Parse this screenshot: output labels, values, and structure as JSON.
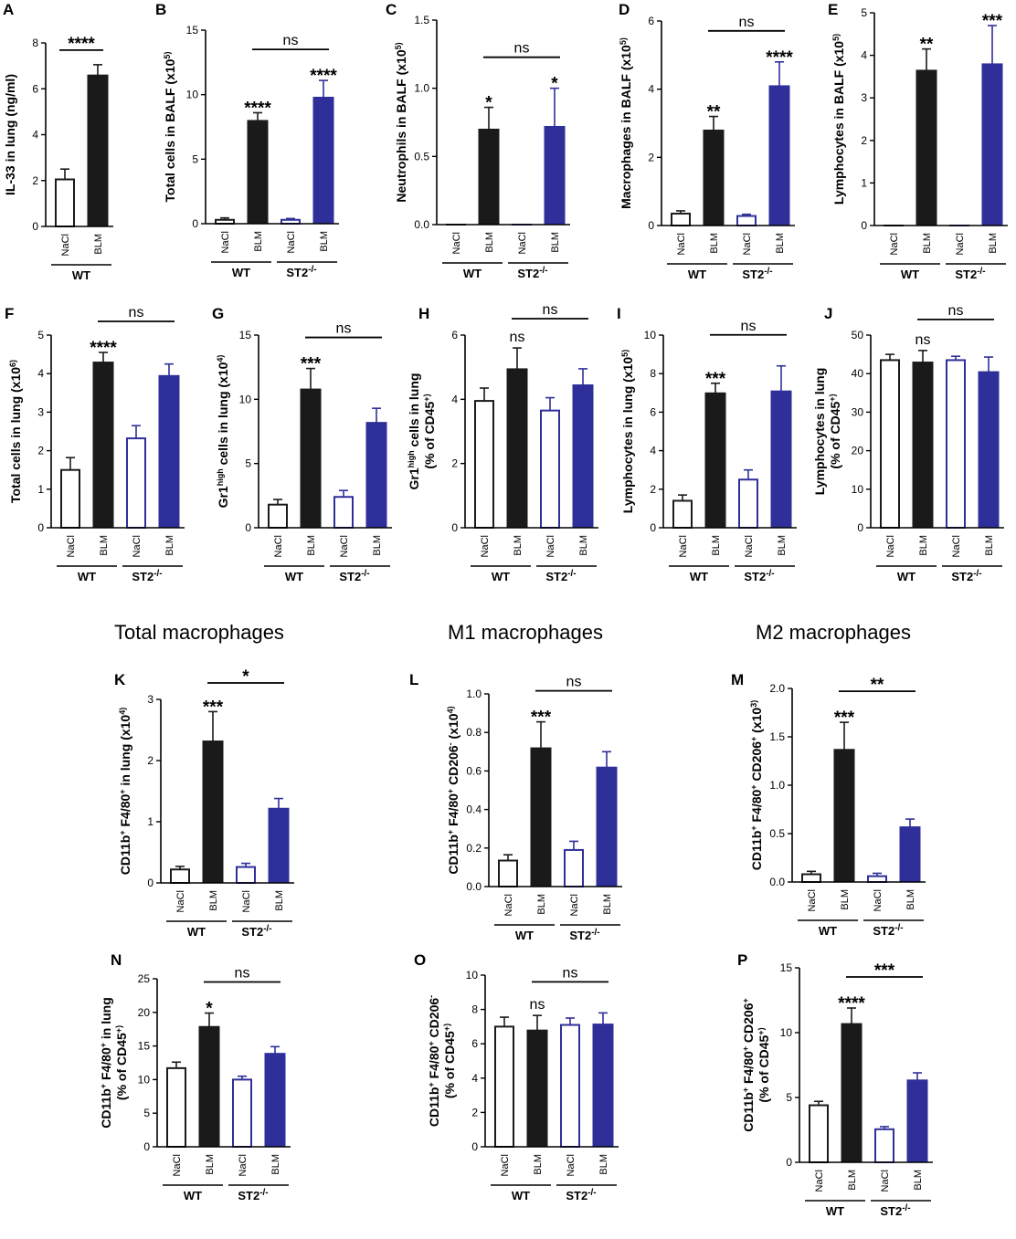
{
  "colors": {
    "wt_fill": "#1a1a1a",
    "st2_fill": "#2f2f9a",
    "st2_stroke": "#2f2f9a",
    "axis": "#000000",
    "white": "#ffffff"
  },
  "section_titles": [
    "Total macrophages",
    "M1 macrophages",
    "M2 macrophages"
  ],
  "categories": [
    "NaCl",
    "BLM",
    "NaCl",
    "BLM"
  ],
  "groups": {
    "wt": "WT",
    "st2": "ST2"
  },
  "chart_data": [
    {
      "id": "A",
      "type": "bar",
      "ylabel": "IL-33 in lung (ng/ml)",
      "ylim": [
        0,
        8
      ],
      "yticks": [
        0,
        2,
        4,
        6,
        8
      ],
      "ytick_labels": [
        "0",
        "2",
        "4",
        "6",
        "8"
      ],
      "categories": [
        "NaCl",
        "BLM"
      ],
      "groups": [
        "WT"
      ],
      "values": [
        2.05,
        6.6
      ],
      "errors": [
        0.45,
        0.45
      ],
      "styles": [
        "wt-open",
        "wt-filled"
      ],
      "stars": [
        "",
        ""
      ],
      "brackets": [
        {
          "from": 0,
          "to": 1,
          "label": "****"
        }
      ]
    },
    {
      "id": "B",
      "type": "bar",
      "ylabel": "Total cells in BALF (x10^5)",
      "ylim": [
        0,
        15
      ],
      "yticks": [
        0,
        5,
        10,
        15
      ],
      "ytick_labels": [
        "0",
        "5",
        "10",
        "15"
      ],
      "categories": [
        "NaCl",
        "BLM",
        "NaCl",
        "BLM"
      ],
      "groups": [
        "WT",
        "ST2"
      ],
      "values": [
        0.3,
        8.0,
        0.3,
        9.8
      ],
      "errors": [
        0.15,
        0.6,
        0.1,
        1.3
      ],
      "styles": [
        "wt-open",
        "wt-filled",
        "st2-open",
        "st2-filled"
      ],
      "stars": [
        "",
        "****",
        "",
        "****"
      ],
      "brackets": [
        {
          "from": 1,
          "to": 3,
          "label": "ns"
        }
      ]
    },
    {
      "id": "C",
      "type": "bar",
      "ylabel": "Neutrophils in BALF (x10^5)",
      "ylim": [
        0,
        1.5
      ],
      "yticks": [
        0,
        0.5,
        1.0,
        1.5
      ],
      "ytick_labels": [
        "0.0",
        "0.5",
        "1.0",
        "1.5"
      ],
      "categories": [
        "NaCl",
        "BLM",
        "NaCl",
        "BLM"
      ],
      "groups": [
        "WT",
        "ST2"
      ],
      "values": [
        0,
        0.7,
        0,
        0.72
      ],
      "errors": [
        0,
        0.16,
        0,
        0.28
      ],
      "styles": [
        "wt-open",
        "wt-filled",
        "st2-open",
        "st2-filled"
      ],
      "stars": [
        "",
        "*",
        "",
        "*"
      ],
      "brackets": [
        {
          "from": 1,
          "to": 3,
          "label": "ns"
        }
      ]
    },
    {
      "id": "D",
      "type": "bar",
      "ylabel": "Macrophages in BALF (x10^5)",
      "ylim": [
        0,
        6
      ],
      "yticks": [
        0,
        2,
        4,
        6
      ],
      "ytick_labels": [
        "0",
        "2",
        "4",
        "6"
      ],
      "categories": [
        "NaCl",
        "BLM",
        "NaCl",
        "BLM"
      ],
      "groups": [
        "WT",
        "ST2"
      ],
      "values": [
        0.35,
        2.8,
        0.28,
        4.1
      ],
      "errors": [
        0.08,
        0.4,
        0.05,
        0.7
      ],
      "styles": [
        "wt-open",
        "wt-filled",
        "st2-open",
        "st2-filled"
      ],
      "stars": [
        "",
        "**",
        "",
        "****"
      ],
      "brackets": [
        {
          "from": 1,
          "to": 3,
          "label": "ns"
        }
      ]
    },
    {
      "id": "E",
      "type": "bar",
      "ylabel": "Lymphocytes in BALF (x10^5)",
      "ylim": [
        0,
        5
      ],
      "yticks": [
        0,
        1,
        2,
        3,
        4,
        5
      ],
      "ytick_labels": [
        "0",
        "1",
        "2",
        "3",
        "4",
        "5"
      ],
      "categories": [
        "NaCl",
        "BLM",
        "NaCl",
        "BLM"
      ],
      "groups": [
        "WT",
        "ST2"
      ],
      "values": [
        0,
        3.65,
        0,
        3.8
      ],
      "errors": [
        0,
        0.5,
        0,
        0.9
      ],
      "styles": [
        "wt-open",
        "wt-filled",
        "st2-open",
        "st2-filled"
      ],
      "stars": [
        "",
        "**",
        "",
        "***"
      ],
      "brackets": [
        {
          "from": 1,
          "to": 3,
          "label": "ns"
        }
      ]
    },
    {
      "id": "F",
      "type": "bar",
      "ylabel": "Total cells in lung (x10^6)",
      "ylim": [
        0,
        5
      ],
      "yticks": [
        0,
        1,
        2,
        3,
        4,
        5
      ],
      "ytick_labels": [
        "0",
        "1",
        "2",
        "3",
        "4",
        "5"
      ],
      "categories": [
        "NaCl",
        "BLM",
        "NaCl",
        "BLM"
      ],
      "groups": [
        "WT",
        "ST2"
      ],
      "values": [
        1.5,
        4.3,
        2.32,
        3.95
      ],
      "errors": [
        0.32,
        0.25,
        0.33,
        0.3
      ],
      "styles": [
        "wt-open",
        "wt-filled",
        "st2-open",
        "st2-filled"
      ],
      "stars": [
        "",
        "****",
        "",
        ""
      ],
      "brackets": [
        {
          "from": 1,
          "to": 3,
          "label": "ns"
        }
      ]
    },
    {
      "id": "G",
      "type": "bar",
      "ylabel": "Gr1^high cells in lung (x10^4)",
      "ylim": [
        0,
        15
      ],
      "yticks": [
        0,
        5,
        10,
        15
      ],
      "ytick_labels": [
        "0",
        "5",
        "10",
        "15"
      ],
      "categories": [
        "NaCl",
        "BLM",
        "NaCl",
        "BLM"
      ],
      "groups": [
        "WT",
        "ST2"
      ],
      "values": [
        1.8,
        10.8,
        2.4,
        8.2
      ],
      "errors": [
        0.4,
        1.6,
        0.5,
        1.1
      ],
      "styles": [
        "wt-open",
        "wt-filled",
        "st2-open",
        "st2-filled"
      ],
      "stars": [
        "",
        "***",
        "",
        ""
      ],
      "brackets": [
        {
          "from": 1,
          "to": 3,
          "label": "ns"
        }
      ]
    },
    {
      "id": "H",
      "type": "bar",
      "ylabel": "Gr1^high cells in lung|(% of CD45^+)",
      "ylim": [
        0,
        6
      ],
      "yticks": [
        0,
        2,
        4,
        6
      ],
      "ytick_labels": [
        "0",
        "2",
        "4",
        "6"
      ],
      "categories": [
        "NaCl",
        "BLM",
        "NaCl",
        "BLM"
      ],
      "groups": [
        "WT",
        "ST2"
      ],
      "values": [
        3.95,
        4.95,
        3.65,
        4.45
      ],
      "errors": [
        0.4,
        0.65,
        0.4,
        0.5
      ],
      "styles": [
        "wt-open",
        "wt-filled",
        "st2-open",
        "st2-filled"
      ],
      "stars": [
        "",
        "ns",
        "",
        ""
      ],
      "brackets": [
        {
          "from": 1,
          "to": 3,
          "label": "ns"
        }
      ]
    },
    {
      "id": "I",
      "type": "bar",
      "ylabel": "Lymphocytes in lung (x10^5)",
      "ylim": [
        0,
        10
      ],
      "yticks": [
        0,
        2,
        4,
        6,
        8,
        10
      ],
      "ytick_labels": [
        "0",
        "2",
        "4",
        "6",
        "8",
        "10"
      ],
      "categories": [
        "NaCl",
        "BLM",
        "NaCl",
        "BLM"
      ],
      "groups": [
        "WT",
        "ST2"
      ],
      "values": [
        1.4,
        7.0,
        2.5,
        7.1
      ],
      "errors": [
        0.3,
        0.5,
        0.5,
        1.3
      ],
      "styles": [
        "wt-open",
        "wt-filled",
        "st2-open",
        "st2-filled"
      ],
      "stars": [
        "",
        "***",
        "",
        ""
      ],
      "brackets": [
        {
          "from": 1,
          "to": 3,
          "label": "ns"
        }
      ]
    },
    {
      "id": "J",
      "type": "bar",
      "ylabel": "Lymphocytes in lung|(% of CD45^+)",
      "ylim": [
        0,
        50
      ],
      "yticks": [
        0,
        10,
        20,
        30,
        40,
        50
      ],
      "ytick_labels": [
        "0",
        "10",
        "20",
        "30",
        "40",
        "50"
      ],
      "categories": [
        "NaCl",
        "BLM",
        "NaCl",
        "BLM"
      ],
      "groups": [
        "WT",
        "ST2"
      ],
      "values": [
        43.5,
        43.0,
        43.5,
        40.5
      ],
      "errors": [
        1.5,
        3.0,
        1.0,
        3.8
      ],
      "styles": [
        "wt-open",
        "wt-filled",
        "st2-open",
        "st2-filled"
      ],
      "stars": [
        "",
        "ns",
        "",
        ""
      ],
      "brackets": [
        {
          "from": 1,
          "to": 3,
          "label": "ns"
        }
      ]
    },
    {
      "id": "K",
      "type": "bar",
      "ylabel": "CD11b^+ F4/80^+ in lung (x10^4)",
      "ylim": [
        0,
        3
      ],
      "yticks": [
        0,
        1,
        2,
        3
      ],
      "ytick_labels": [
        "0",
        "1",
        "2",
        "3"
      ],
      "categories": [
        "NaCl",
        "BLM",
        "NaCl",
        "BLM"
      ],
      "groups": [
        "WT",
        "ST2"
      ],
      "values": [
        0.22,
        2.32,
        0.26,
        1.22
      ],
      "errors": [
        0.05,
        0.48,
        0.06,
        0.16
      ],
      "styles": [
        "wt-open",
        "wt-filled",
        "st2-open",
        "st2-filled"
      ],
      "stars": [
        "",
        "***",
        "",
        ""
      ],
      "brackets": [
        {
          "from": 1,
          "to": 3,
          "label": "*"
        }
      ]
    },
    {
      "id": "L",
      "type": "bar",
      "ylabel": "CD11b^+ F4/80^+ CD206^- (x10^4)",
      "ylim": [
        0,
        1.0
      ],
      "yticks": [
        0,
        0.2,
        0.4,
        0.6,
        0.8,
        1.0
      ],
      "ytick_labels": [
        "0.0",
        "0.2",
        "0.4",
        "0.6",
        "0.8",
        "1.0"
      ],
      "categories": [
        "NaCl",
        "BLM",
        "NaCl",
        "BLM"
      ],
      "groups": [
        "WT",
        "ST2"
      ],
      "values": [
        0.135,
        0.72,
        0.19,
        0.62
      ],
      "errors": [
        0.03,
        0.135,
        0.045,
        0.08
      ],
      "styles": [
        "wt-open",
        "wt-filled",
        "st2-open",
        "st2-filled"
      ],
      "stars": [
        "",
        "***",
        "",
        ""
      ],
      "brackets": [
        {
          "from": 1,
          "to": 3,
          "label": "ns"
        }
      ]
    },
    {
      "id": "M",
      "type": "bar",
      "ylabel": "CD11b^+ F4/80^+ CD206^+ (x10^3)",
      "ylim": [
        0,
        2.0
      ],
      "yticks": [
        0,
        0.5,
        1.0,
        1.5,
        2.0
      ],
      "ytick_labels": [
        "0.0",
        "0.5",
        "1.0",
        "1.5",
        "2.0"
      ],
      "categories": [
        "NaCl",
        "BLM",
        "NaCl",
        "BLM"
      ],
      "groups": [
        "WT",
        "ST2"
      ],
      "values": [
        0.08,
        1.37,
        0.06,
        0.57
      ],
      "errors": [
        0.03,
        0.28,
        0.03,
        0.08
      ],
      "styles": [
        "wt-open",
        "wt-filled",
        "st2-open",
        "st2-filled"
      ],
      "stars": [
        "",
        "***",
        "",
        ""
      ],
      "brackets": [
        {
          "from": 1,
          "to": 3,
          "label": "**"
        }
      ]
    },
    {
      "id": "N",
      "type": "bar",
      "ylabel": "CD11b^+ F4/80^+ in lung|(% of CD45^+)",
      "ylim": [
        0,
        25
      ],
      "yticks": [
        0,
        5,
        10,
        15,
        20,
        25
      ],
      "ytick_labels": [
        "0",
        "5",
        "10",
        "15",
        "20",
        "25"
      ],
      "categories": [
        "NaCl",
        "BLM",
        "NaCl",
        "BLM"
      ],
      "groups": [
        "WT",
        "ST2"
      ],
      "values": [
        11.7,
        17.9,
        10.0,
        13.9
      ],
      "errors": [
        0.9,
        2.0,
        0.5,
        1.0
      ],
      "styles": [
        "wt-open",
        "wt-filled",
        "st2-open",
        "st2-filled"
      ],
      "stars": [
        "",
        "*",
        "",
        ""
      ],
      "brackets": [
        {
          "from": 1,
          "to": 3,
          "label": "ns"
        }
      ]
    },
    {
      "id": "O",
      "type": "bar",
      "ylabel": "CD11b^+ F4/80^+ CD206^-|(% of CD45^+)",
      "ylim": [
        0,
        10
      ],
      "yticks": [
        0,
        2,
        4,
        6,
        8,
        10
      ],
      "ytick_labels": [
        "0",
        "2",
        "4",
        "6",
        "8",
        "10"
      ],
      "categories": [
        "NaCl",
        "BLM",
        "NaCl",
        "BLM"
      ],
      "groups": [
        "WT",
        "ST2"
      ],
      "values": [
        7.0,
        6.8,
        7.1,
        7.15
      ],
      "errors": [
        0.55,
        0.85,
        0.4,
        0.65
      ],
      "styles": [
        "wt-open",
        "wt-filled",
        "st2-open",
        "st2-filled"
      ],
      "stars": [
        "",
        "ns",
        "",
        ""
      ],
      "brackets": [
        {
          "from": 1,
          "to": 3,
          "label": "ns"
        }
      ]
    },
    {
      "id": "P",
      "type": "bar",
      "ylabel": "CD11b^+ F4/80^+ CD206^+|(% of CD45^+)",
      "ylim": [
        0,
        15
      ],
      "yticks": [
        0,
        5,
        10,
        15
      ],
      "ytick_labels": [
        "0",
        "5",
        "10",
        "15"
      ],
      "categories": [
        "NaCl",
        "BLM",
        "NaCl",
        "BLM"
      ],
      "groups": [
        "WT",
        "ST2"
      ],
      "values": [
        4.4,
        10.7,
        2.55,
        6.35
      ],
      "errors": [
        0.3,
        1.2,
        0.2,
        0.55
      ],
      "styles": [
        "wt-open",
        "wt-filled",
        "st2-open",
        "st2-filled"
      ],
      "stars": [
        "",
        "****",
        "",
        ""
      ],
      "brackets": [
        {
          "from": 1,
          "to": 3,
          "label": "***"
        }
      ]
    }
  ]
}
